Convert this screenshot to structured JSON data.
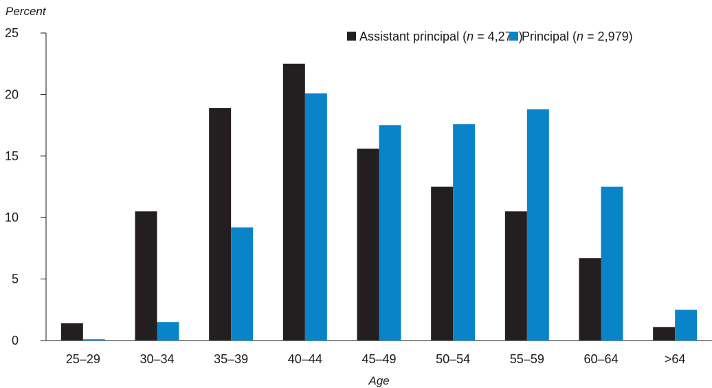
{
  "chart_data": {
    "type": "bar",
    "ylabel": "Percent",
    "xlabel": "Age",
    "ylim": [
      0,
      25
    ],
    "yticks": [
      "0",
      "5",
      "10",
      "15",
      "20",
      "25"
    ],
    "categories": [
      "25–29",
      "30–34",
      "35–39",
      "40–44",
      "45–49",
      "50–54",
      "55–59",
      "60–64",
      ">64"
    ],
    "series": [
      {
        "name": "Assistant principal",
        "legend_prefix": "Assistant principal (",
        "legend_n": "n",
        "legend_suffix": " = 4,273)",
        "color": "#231f20",
        "values": [
          1.4,
          10.5,
          18.9,
          22.5,
          15.6,
          12.5,
          10.5,
          6.7,
          1.1
        ]
      },
      {
        "name": "Principal",
        "legend_prefix": "Principal (",
        "legend_n": "n",
        "legend_suffix": " = 2,979)",
        "color": "#0a84c9",
        "values": [
          0.1,
          1.5,
          9.2,
          20.1,
          17.5,
          17.6,
          18.8,
          12.5,
          2.5
        ]
      }
    ],
    "legend_position": "top-right",
    "grid": false
  }
}
